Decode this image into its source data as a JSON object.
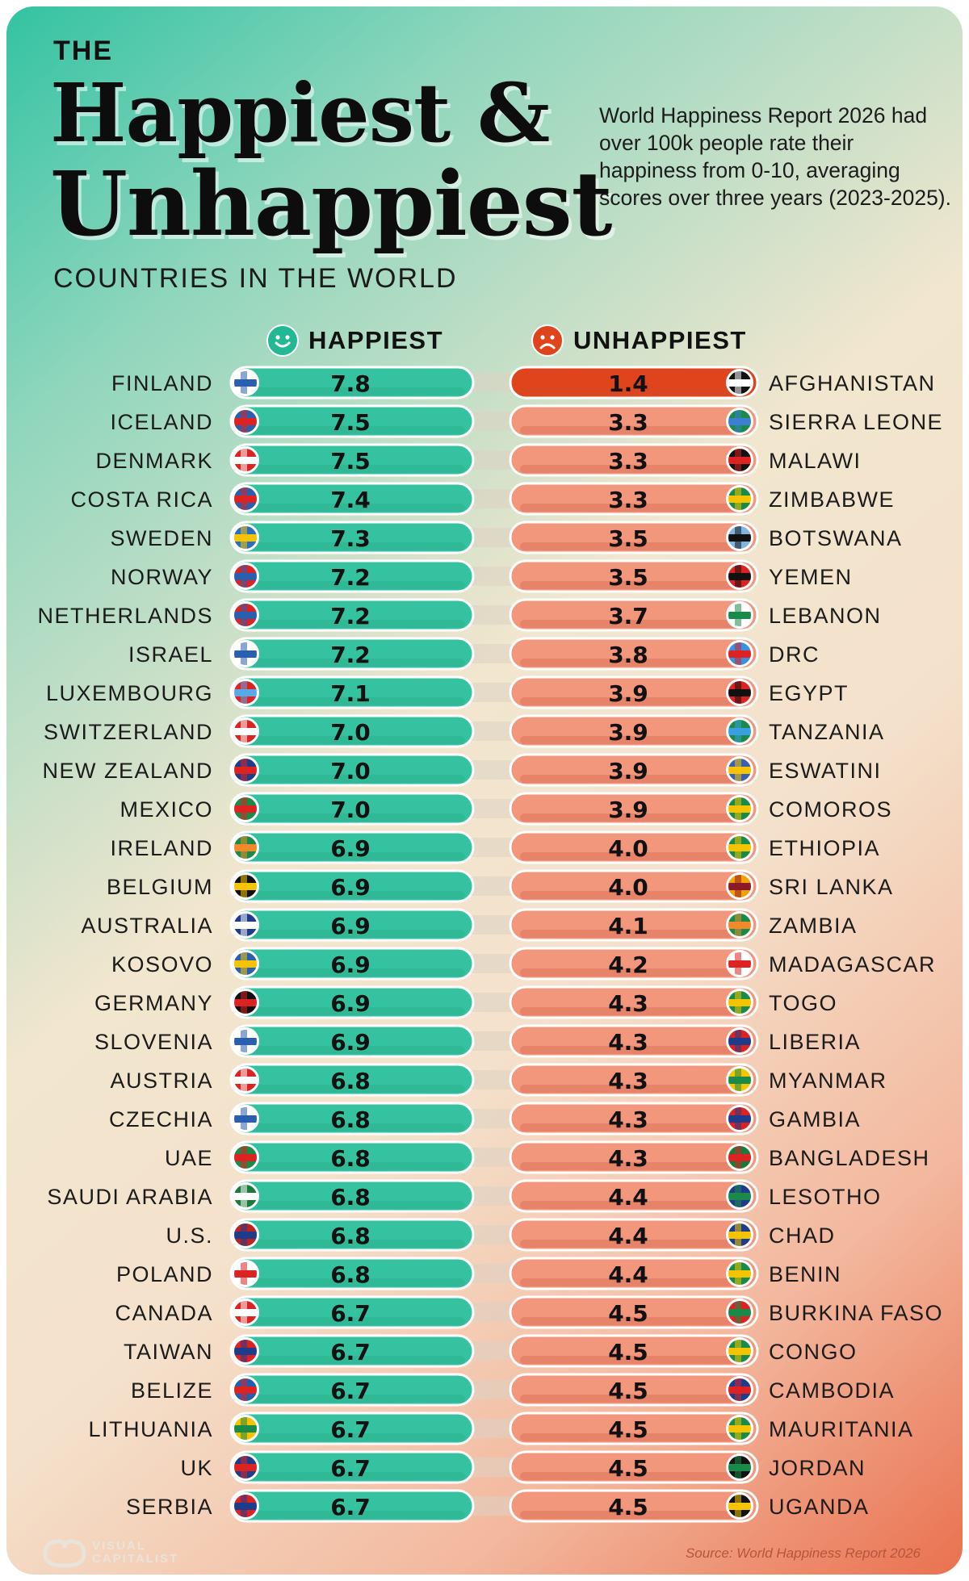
{
  "header": {
    "the": "THE",
    "line1": "Happiest &",
    "line2": "Unhappiest",
    "subtitle": "COUNTRIES IN THE WORLD",
    "description": "World Happiness Report 2026 had over 100k people rate their happiness from 0-10, averaging scores over three years (2023-2025)."
  },
  "columns": {
    "happy_label": "HAPPIEST",
    "unhappy_label": "UNHAPPIEST"
  },
  "colors": {
    "happy_bar": "#35c2a0",
    "happy_bar_dark": "#27a987",
    "unhappy_bar": "#f2967c",
    "unhappy_bar_top": "#e0441d",
    "happy_face": "#22b894",
    "unhappy_face": "#e0441d"
  },
  "footer": {
    "source": "Source: World Happiness Report 2026",
    "brand_line1": "VISUAL",
    "brand_line2": "CAPITALIST"
  },
  "chart_data": {
    "type": "table",
    "value_range": [
      0,
      10
    ],
    "happiest": [
      {
        "country": "FINLAND",
        "score": 7.8
      },
      {
        "country": "ICELAND",
        "score": 7.5
      },
      {
        "country": "DENMARK",
        "score": 7.5
      },
      {
        "country": "COSTA RICA",
        "score": 7.4
      },
      {
        "country": "SWEDEN",
        "score": 7.3
      },
      {
        "country": "NORWAY",
        "score": 7.2
      },
      {
        "country": "NETHERLANDS",
        "score": 7.2
      },
      {
        "country": "ISRAEL",
        "score": 7.2
      },
      {
        "country": "LUXEMBOURG",
        "score": 7.1
      },
      {
        "country": "SWITZERLAND",
        "score": 7.0
      },
      {
        "country": "NEW ZEALAND",
        "score": 7.0
      },
      {
        "country": "MEXICO",
        "score": 7.0
      },
      {
        "country": "IRELAND",
        "score": 6.9
      },
      {
        "country": "BELGIUM",
        "score": 6.9
      },
      {
        "country": "AUSTRALIA",
        "score": 6.9
      },
      {
        "country": "KOSOVO",
        "score": 6.9
      },
      {
        "country": "GERMANY",
        "score": 6.9
      },
      {
        "country": "SLOVENIA",
        "score": 6.9
      },
      {
        "country": "AUSTRIA",
        "score": 6.8
      },
      {
        "country": "CZECHIA",
        "score": 6.8
      },
      {
        "country": "UAE",
        "score": 6.8
      },
      {
        "country": "SAUDI ARABIA",
        "score": 6.8
      },
      {
        "country": "U.S.",
        "score": 6.8
      },
      {
        "country": "POLAND",
        "score": 6.8
      },
      {
        "country": "CANADA",
        "score": 6.7
      },
      {
        "country": "TAIWAN",
        "score": 6.7
      },
      {
        "country": "BELIZE",
        "score": 6.7
      },
      {
        "country": "LITHUANIA",
        "score": 6.7
      },
      {
        "country": "UK",
        "score": 6.7
      },
      {
        "country": "SERBIA",
        "score": 6.7
      }
    ],
    "unhappiest": [
      {
        "country": "AFGHANISTAN",
        "score": 1.4
      },
      {
        "country": "SIERRA LEONE",
        "score": 3.3
      },
      {
        "country": "MALAWI",
        "score": 3.3
      },
      {
        "country": "ZIMBABWE",
        "score": 3.3
      },
      {
        "country": "BOTSWANA",
        "score": 3.5
      },
      {
        "country": "YEMEN",
        "score": 3.5
      },
      {
        "country": "LEBANON",
        "score": 3.7
      },
      {
        "country": "DRC",
        "score": 3.8
      },
      {
        "country": "EGYPT",
        "score": 3.9
      },
      {
        "country": "TANZANIA",
        "score": 3.9
      },
      {
        "country": "ESWATINI",
        "score": 3.9
      },
      {
        "country": "COMOROS",
        "score": 3.9
      },
      {
        "country": "ETHIOPIA",
        "score": 4.0
      },
      {
        "country": "SRI LANKA",
        "score": 4.0
      },
      {
        "country": "ZAMBIA",
        "score": 4.1
      },
      {
        "country": "MADAGASCAR",
        "score": 4.2
      },
      {
        "country": "TOGO",
        "score": 4.3
      },
      {
        "country": "LIBERIA",
        "score": 4.3
      },
      {
        "country": "MYANMAR",
        "score": 4.3
      },
      {
        "country": "GAMBIA",
        "score": 4.3
      },
      {
        "country": "BANGLADESH",
        "score": 4.3
      },
      {
        "country": "LESOTHO",
        "score": 4.4
      },
      {
        "country": "CHAD",
        "score": 4.4
      },
      {
        "country": "BENIN",
        "score": 4.4
      },
      {
        "country": "BURKINA FASO",
        "score": 4.5
      },
      {
        "country": "CONGO",
        "score": 4.5
      },
      {
        "country": "CAMBODIA",
        "score": 4.5
      },
      {
        "country": "MAURITANIA",
        "score": 4.5
      },
      {
        "country": "JORDAN",
        "score": 4.5
      },
      {
        "country": "UGANDA",
        "score": 4.5
      }
    ]
  }
}
